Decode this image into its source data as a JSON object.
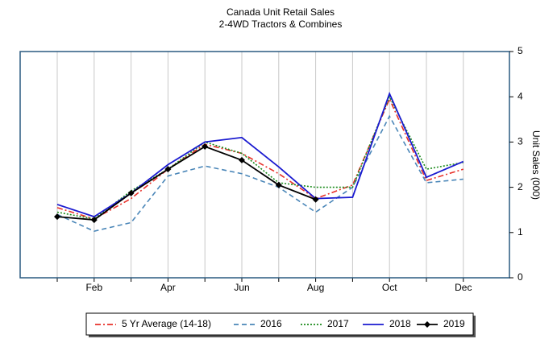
{
  "chart_data": {
    "type": "line",
    "title": "Canada Unit Retail Sales",
    "subtitle": "2-4WD Tractors & Combines",
    "y_label": "Unit Sales (000)",
    "y_axis_side": "right",
    "categories": [
      null,
      "Feb",
      null,
      "Apr",
      null,
      "Jun",
      null,
      "Aug",
      null,
      "Oct",
      null,
      "Dec"
    ],
    "ylim": [
      0,
      5
    ],
    "yticks": [
      0,
      1,
      2,
      3,
      4,
      5
    ],
    "grid": "x",
    "legend": "bottom",
    "series": [
      {
        "name": "5 Yr Average (14-18)",
        "color": "#e8312a",
        "style": "dashdot",
        "values": [
          1.55,
          1.3,
          1.75,
          2.4,
          2.95,
          2.75,
          2.3,
          1.75,
          2.05,
          3.95,
          2.15,
          2.4
        ]
      },
      {
        "name": "2016",
        "color": "#4a86b8",
        "style": "dashed",
        "values": [
          1.4,
          1.03,
          1.22,
          2.25,
          2.47,
          2.3,
          2.0,
          1.45,
          2.0,
          3.57,
          2.1,
          2.18
        ]
      },
      {
        "name": "2017",
        "color": "#1a8a1a",
        "style": "dotted",
        "values": [
          1.45,
          1.3,
          1.92,
          2.4,
          3.0,
          2.75,
          2.1,
          2.0,
          2.0,
          4.0,
          2.4,
          2.55
        ]
      },
      {
        "name": "2018",
        "color": "#1a1ad0",
        "style": "solid",
        "values": [
          1.62,
          1.35,
          1.87,
          2.5,
          3.0,
          3.1,
          2.45,
          1.75,
          1.78,
          4.07,
          2.22,
          2.57
        ]
      },
      {
        "name": "2019",
        "color": "#000000",
        "style": "solid",
        "marker": "diamond",
        "values": [
          1.35,
          1.28,
          1.87,
          2.4,
          2.9,
          2.6,
          2.05,
          1.73,
          null,
          null,
          null,
          null
        ]
      }
    ]
  }
}
